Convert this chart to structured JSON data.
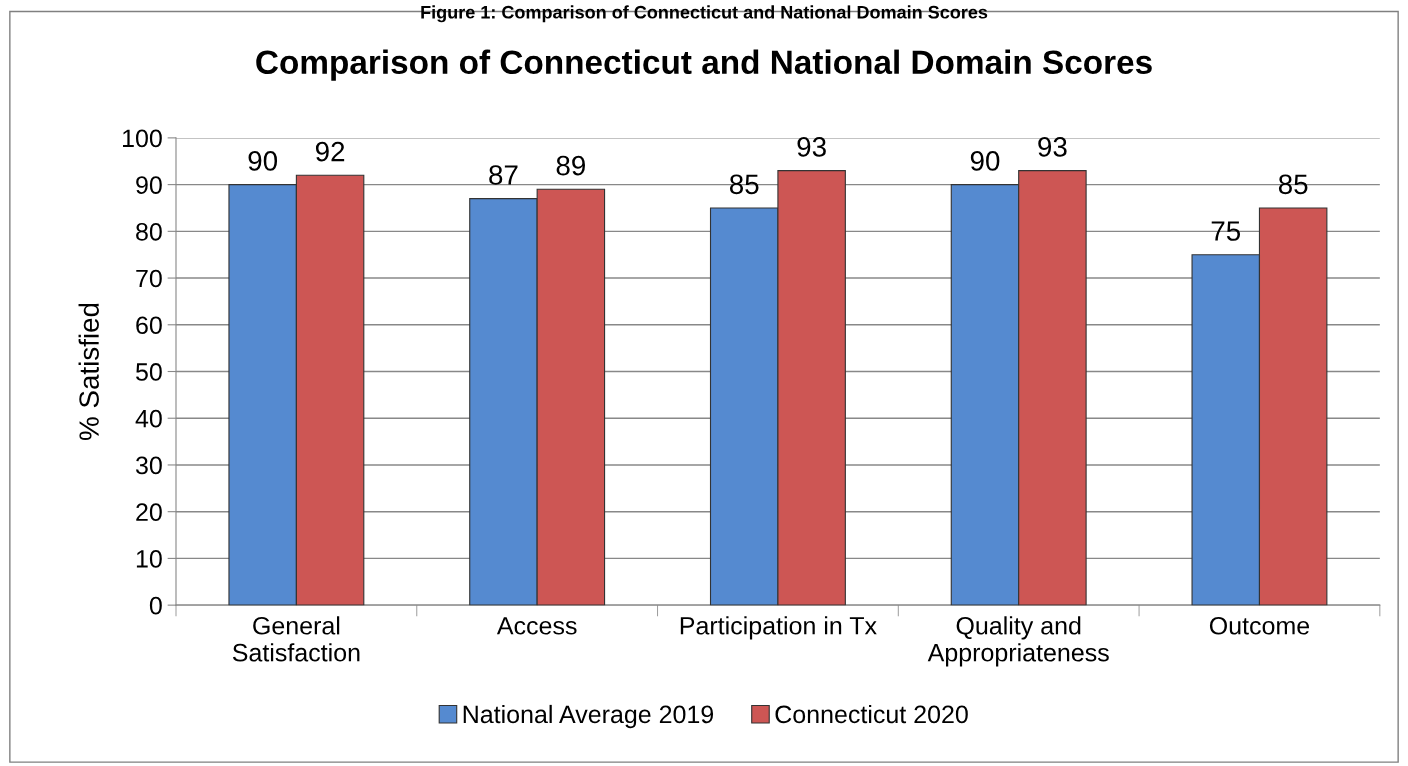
{
  "chart_data": {
    "type": "bar",
    "title": "Comparison of Connecticut and National Domain Scores",
    "ylabel": "% Satisfied",
    "annotations": [
      "Figure 1: Comparison of Connecticut and National Domain Scores"
    ],
    "categories": [
      "General\nSatisfaction",
      "Access",
      "Participation in Tx",
      "Quality and\nAppropriateness",
      "Outcome"
    ],
    "series": [
      {
        "name": "National Average 2019",
        "color": "#558ad0",
        "values": [
          90,
          87,
          85,
          90,
          75
        ]
      },
      {
        "name": "Connecticut 2020",
        "color": "#cd5654",
        "values": [
          92,
          89,
          93,
          93,
          85
        ]
      }
    ],
    "ylim": [
      0,
      100
    ],
    "yticks": [
      0,
      10,
      20,
      30,
      40,
      50,
      60,
      70,
      80,
      90,
      100
    ],
    "grid": "y",
    "legend": "bottom",
    "data_labels": true
  }
}
